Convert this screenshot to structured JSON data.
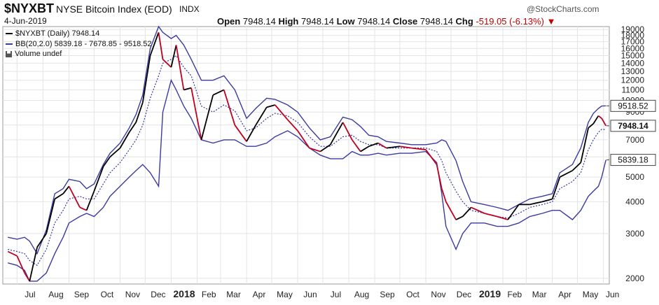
{
  "header": {
    "symbol": "$NYXBT",
    "full_name": "NYSE Bitcoin Index (EOD)",
    "exchange": "INDX",
    "copyright": "@StockCharts.com",
    "date": "4-Jun-2019",
    "open_label": "Open",
    "open_value": "7948.14",
    "high_label": "High",
    "high_value": "7948.14",
    "low_label": "Low",
    "low_value": "7948.14",
    "close_label": "Close",
    "close_value": "7948.14",
    "chg_label": "Chg",
    "chg_value": "-519.05 (-6.13%)"
  },
  "legend": {
    "price": "$NYXBT (Daily) 7948.14",
    "bb": "BB(20,2.0) 5839.18 - 7678.85 - 9518.52",
    "volume": "Volume undef"
  },
  "colors": {
    "price_line": "#000000",
    "price_down": "#c00020",
    "band": "#3a3aa0",
    "grid": "#e4e4e4"
  },
  "chart_data": {
    "type": "line",
    "y_scale": "log",
    "ylim": [
      1900,
      19500
    ],
    "y_ticks": [
      2000,
      3000,
      4000,
      5000,
      6000,
      7000,
      8000,
      9000,
      10000,
      11000,
      12000,
      13000,
      14000,
      15000,
      16000,
      17000,
      18000,
      19000
    ],
    "x_ticks": [
      "Jul",
      "Aug",
      "Sep",
      "Oct",
      "Nov",
      "Dec",
      "2018",
      "Feb",
      "Mar",
      "Apr",
      "May",
      "Jun",
      "Jul",
      "Aug",
      "Sep",
      "Oct",
      "Nov",
      "Dec",
      "2019",
      "Feb",
      "Mar",
      "Apr",
      "May",
      "Jun"
    ],
    "value_labels": {
      "upper": "9518.52",
      "close": "7948.14",
      "lower": "5839.18"
    },
    "x": [
      "2017-06-20",
      "2017-07-01",
      "2017-07-10",
      "2017-07-16",
      "2017-07-25",
      "2017-08-05",
      "2017-08-15",
      "2017-08-25",
      "2017-09-01",
      "2017-09-14",
      "2017-09-22",
      "2017-10-01",
      "2017-10-12",
      "2017-10-20",
      "2017-11-01",
      "2017-11-12",
      "2017-11-20",
      "2017-11-28",
      "2017-12-07",
      "2017-12-17",
      "2017-12-22",
      "2018-01-01",
      "2018-01-07",
      "2018-01-16",
      "2018-01-25",
      "2018-02-06",
      "2018-02-20",
      "2018-03-05",
      "2018-03-18",
      "2018-04-01",
      "2018-04-12",
      "2018-04-25",
      "2018-05-05",
      "2018-05-20",
      "2018-06-01",
      "2018-06-15",
      "2018-06-28",
      "2018-07-10",
      "2018-07-25",
      "2018-08-05",
      "2018-08-15",
      "2018-08-25",
      "2018-09-05",
      "2018-09-15",
      "2018-10-01",
      "2018-10-15",
      "2018-11-01",
      "2018-11-14",
      "2018-11-20",
      "2018-11-25",
      "2018-12-07",
      "2018-12-15",
      "2018-12-25",
      "2019-01-10",
      "2019-01-25",
      "2019-02-07",
      "2019-02-20",
      "2019-03-05",
      "2019-03-20",
      "2019-04-01",
      "2019-04-10",
      "2019-04-25",
      "2019-05-05",
      "2019-05-14",
      "2019-05-20",
      "2019-05-26",
      "2019-05-30",
      "2019-06-04"
    ],
    "series": [
      {
        "key": "price",
        "values": [
          2550,
          2450,
          2100,
          1950,
          2650,
          3000,
          4100,
          4300,
          4600,
          3800,
          3700,
          4400,
          5500,
          6000,
          6500,
          7500,
          8200,
          9800,
          15000,
          18500,
          14500,
          13500,
          16500,
          11000,
          11200,
          7000,
          10500,
          11000,
          8000,
          6900,
          8000,
          9400,
          9600,
          8400,
          7600,
          6500,
          6300,
          6700,
          8200,
          7000,
          6300,
          6600,
          6800,
          6500,
          6600,
          6500,
          6400,
          5600,
          4500,
          4000,
          3400,
          3500,
          3800,
          3600,
          3500,
          3400,
          3900,
          3900,
          4000,
          4100,
          5000,
          5300,
          5700,
          7800,
          8100,
          8700,
          8500,
          7948
        ]
      },
      {
        "key": "upper",
        "values": [
          2900,
          2850,
          2900,
          2800,
          2500,
          3100,
          4300,
          4500,
          4900,
          4800,
          4500,
          4700,
          5600,
          6200,
          6800,
          7800,
          8800,
          10500,
          16000,
          19500,
          18500,
          17500,
          18000,
          16500,
          14500,
          12000,
          12000,
          12500,
          11000,
          8500,
          9300,
          10200,
          10100,
          9600,
          9000,
          7800,
          7000,
          7200,
          8600,
          8400,
          7900,
          7300,
          7200,
          6900,
          6800,
          6700,
          6700,
          6800,
          7000,
          6900,
          5800,
          4800,
          4000,
          3900,
          3800,
          3700,
          3900,
          4100,
          4200,
          4300,
          5200,
          5600,
          6500,
          8200,
          8900,
          9300,
          9500,
          9518.52
        ]
      },
      {
        "key": "middle",
        "values": [
          2600,
          2550,
          2500,
          2350,
          2250,
          2600,
          3300,
          3700,
          4100,
          4200,
          4100,
          4100,
          4700,
          5200,
          5700,
          6400,
          7000,
          8000,
          10200,
          12500,
          14000,
          14500,
          15000,
          13500,
          12500,
          9500,
          9000,
          9600,
          9100,
          7600,
          7800,
          8500,
          8900,
          8700,
          8200,
          7200,
          6600,
          6600,
          7200,
          7300,
          6900,
          6700,
          6700,
          6500,
          6500,
          6500,
          6500,
          6300,
          5800,
          5200,
          4400,
          4000,
          3700,
          3600,
          3500,
          3450,
          3600,
          3800,
          3900,
          4000,
          4500,
          4800,
          5200,
          6400,
          7000,
          7500,
          7700,
          7678.85
        ]
      },
      {
        "key": "lower",
        "values": [
          2300,
          2250,
          2150,
          1950,
          1950,
          2100,
          2500,
          2900,
          3300,
          3500,
          3600,
          3500,
          3800,
          4200,
          4600,
          5000,
          5300,
          5600,
          5200,
          4600,
          9000,
          12000,
          11000,
          9500,
          8500,
          7000,
          6800,
          7000,
          7000,
          6600,
          6600,
          6800,
          7200,
          7600,
          7200,
          6500,
          6100,
          5900,
          5900,
          6300,
          6100,
          6100,
          6200,
          6100,
          6200,
          6200,
          6300,
          5700,
          4300,
          3200,
          2600,
          3000,
          3300,
          3300,
          3200,
          3200,
          3300,
          3500,
          3600,
          3700,
          3700,
          3400,
          3700,
          4200,
          4400,
          4600,
          5000,
          5839.18
        ]
      }
    ]
  }
}
